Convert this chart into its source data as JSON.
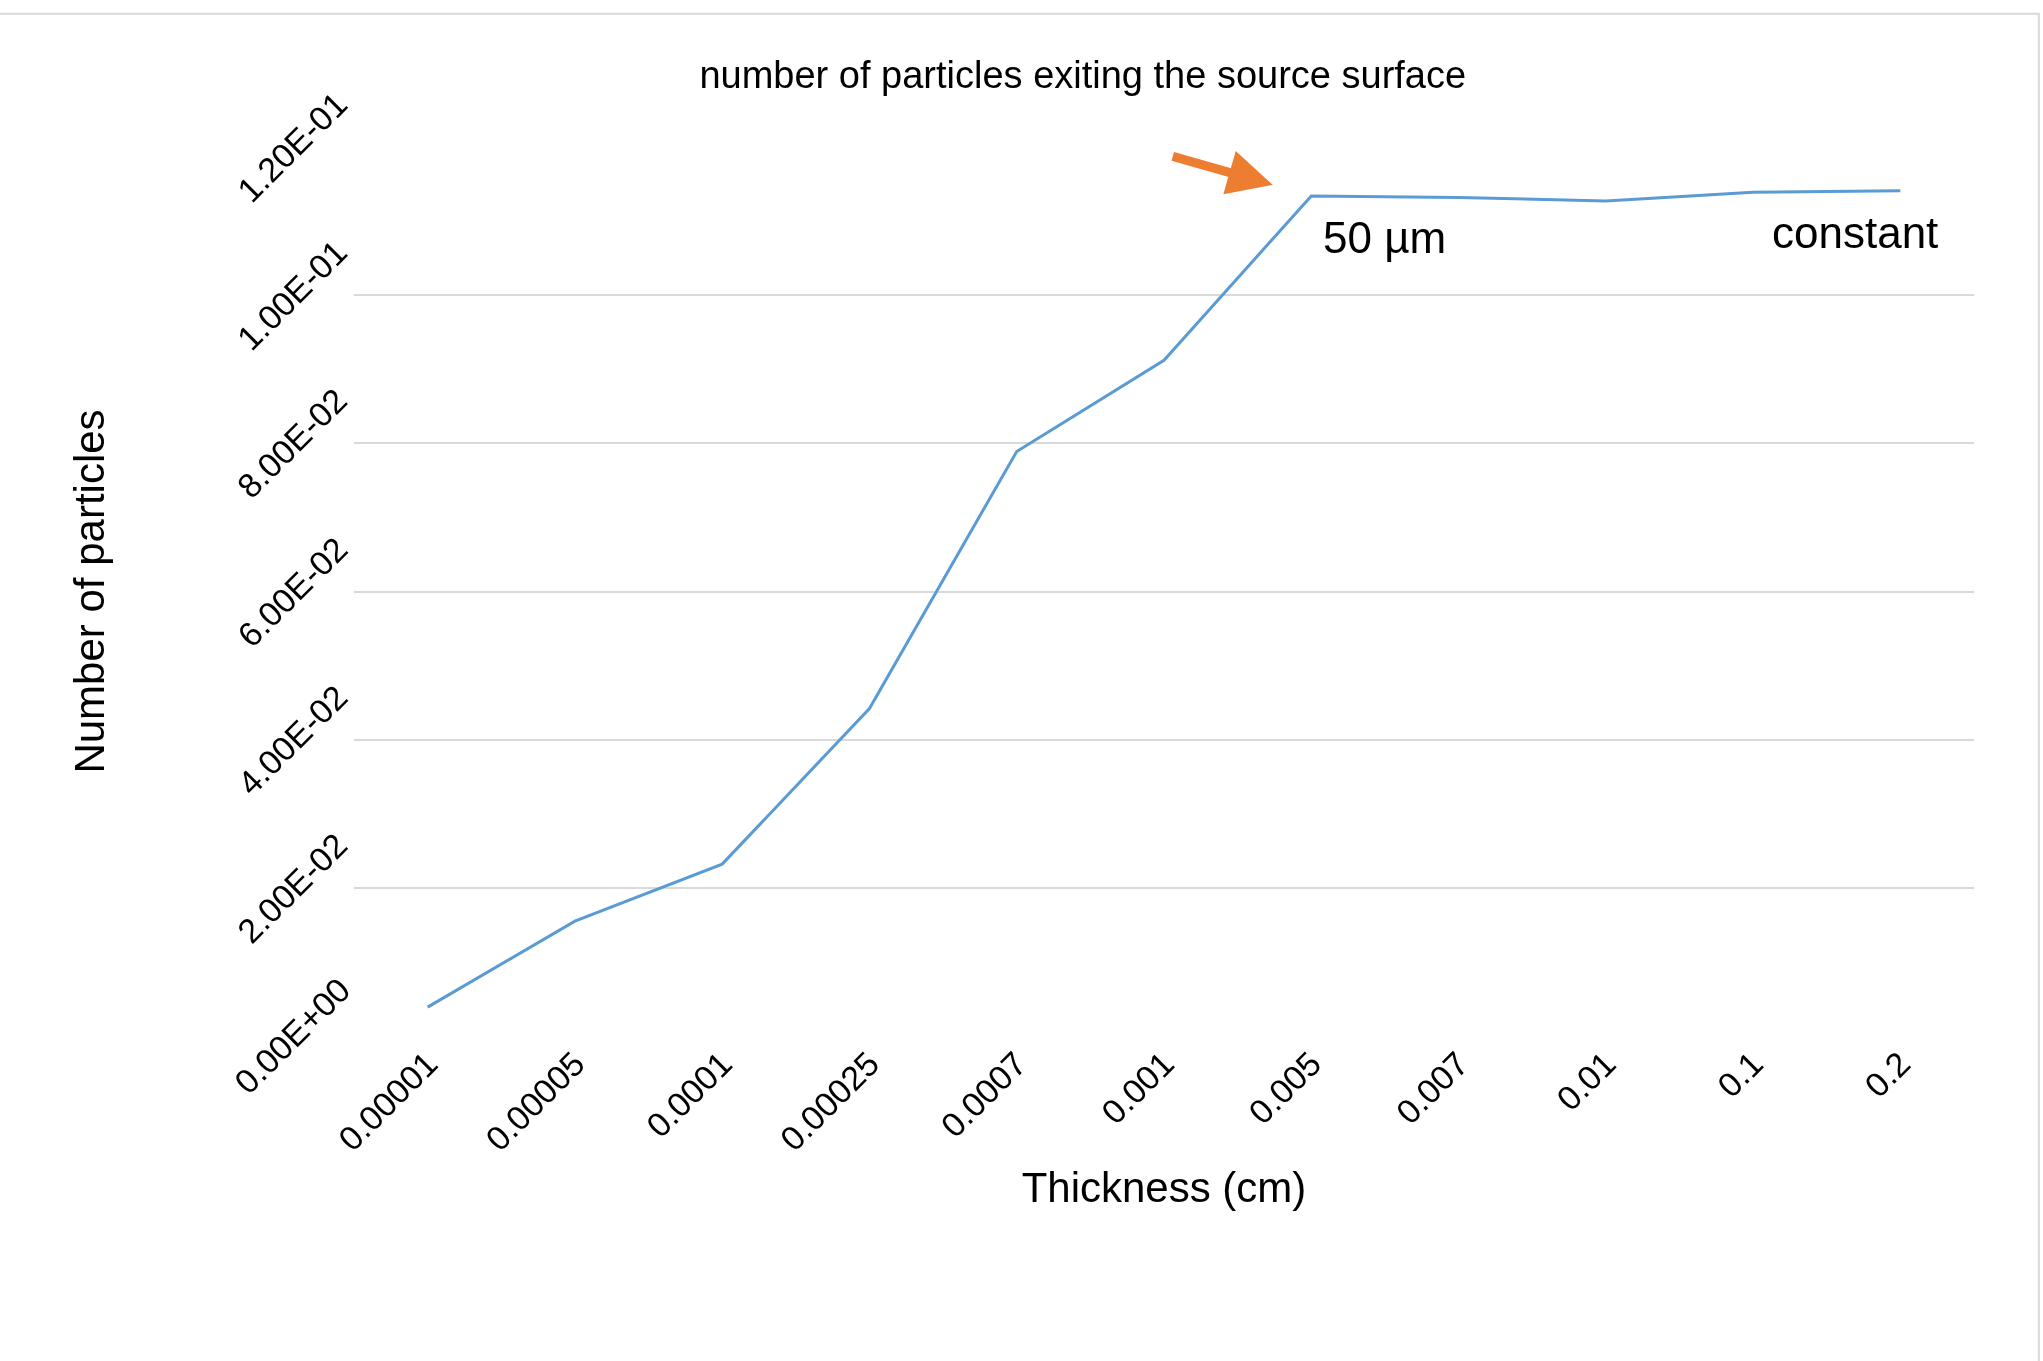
{
  "chart_data": {
    "type": "line",
    "title": "number of particles exiting the source surface",
    "xlabel": "Thickness (cm)",
    "ylabel": "Number of particles",
    "categories": [
      "0.00001",
      "0.00005",
      "0.0001",
      "0.00025",
      "0.0007",
      "0.001",
      "0.005",
      "0.007",
      "0.01",
      "0.1",
      "0.2"
    ],
    "series": [
      {
        "color": "#5b9bd5",
        "values": [
          0.0039,
          0.0155,
          0.0232,
          0.0442,
          0.0789,
          0.0912,
          0.1134,
          0.1132,
          0.1127,
          0.1139,
          0.1141
        ]
      }
    ],
    "ylim": [
      0,
      0.12
    ],
    "yticks": [
      {
        "value": 0,
        "label": "0.00E+00"
      },
      {
        "value": 0.02,
        "label": "2.00E-02"
      },
      {
        "value": 0.04,
        "label": "4.00E-02"
      },
      {
        "value": 0.06,
        "label": "6.00E-02"
      },
      {
        "value": 0.08,
        "label": "8.00E-02"
      },
      {
        "value": 0.1,
        "label": "1.00E-01"
      },
      {
        "value": 0.12,
        "label": "1.20E-01"
      }
    ],
    "grid": "y",
    "legend": false,
    "marker": "none",
    "line_style": "solid",
    "annotations": [
      {
        "text": "50 µm",
        "x": "0.005",
        "y": 0.1134
      },
      {
        "text": "constant",
        "x": "0.2",
        "y": 0.1141
      }
    ]
  }
}
